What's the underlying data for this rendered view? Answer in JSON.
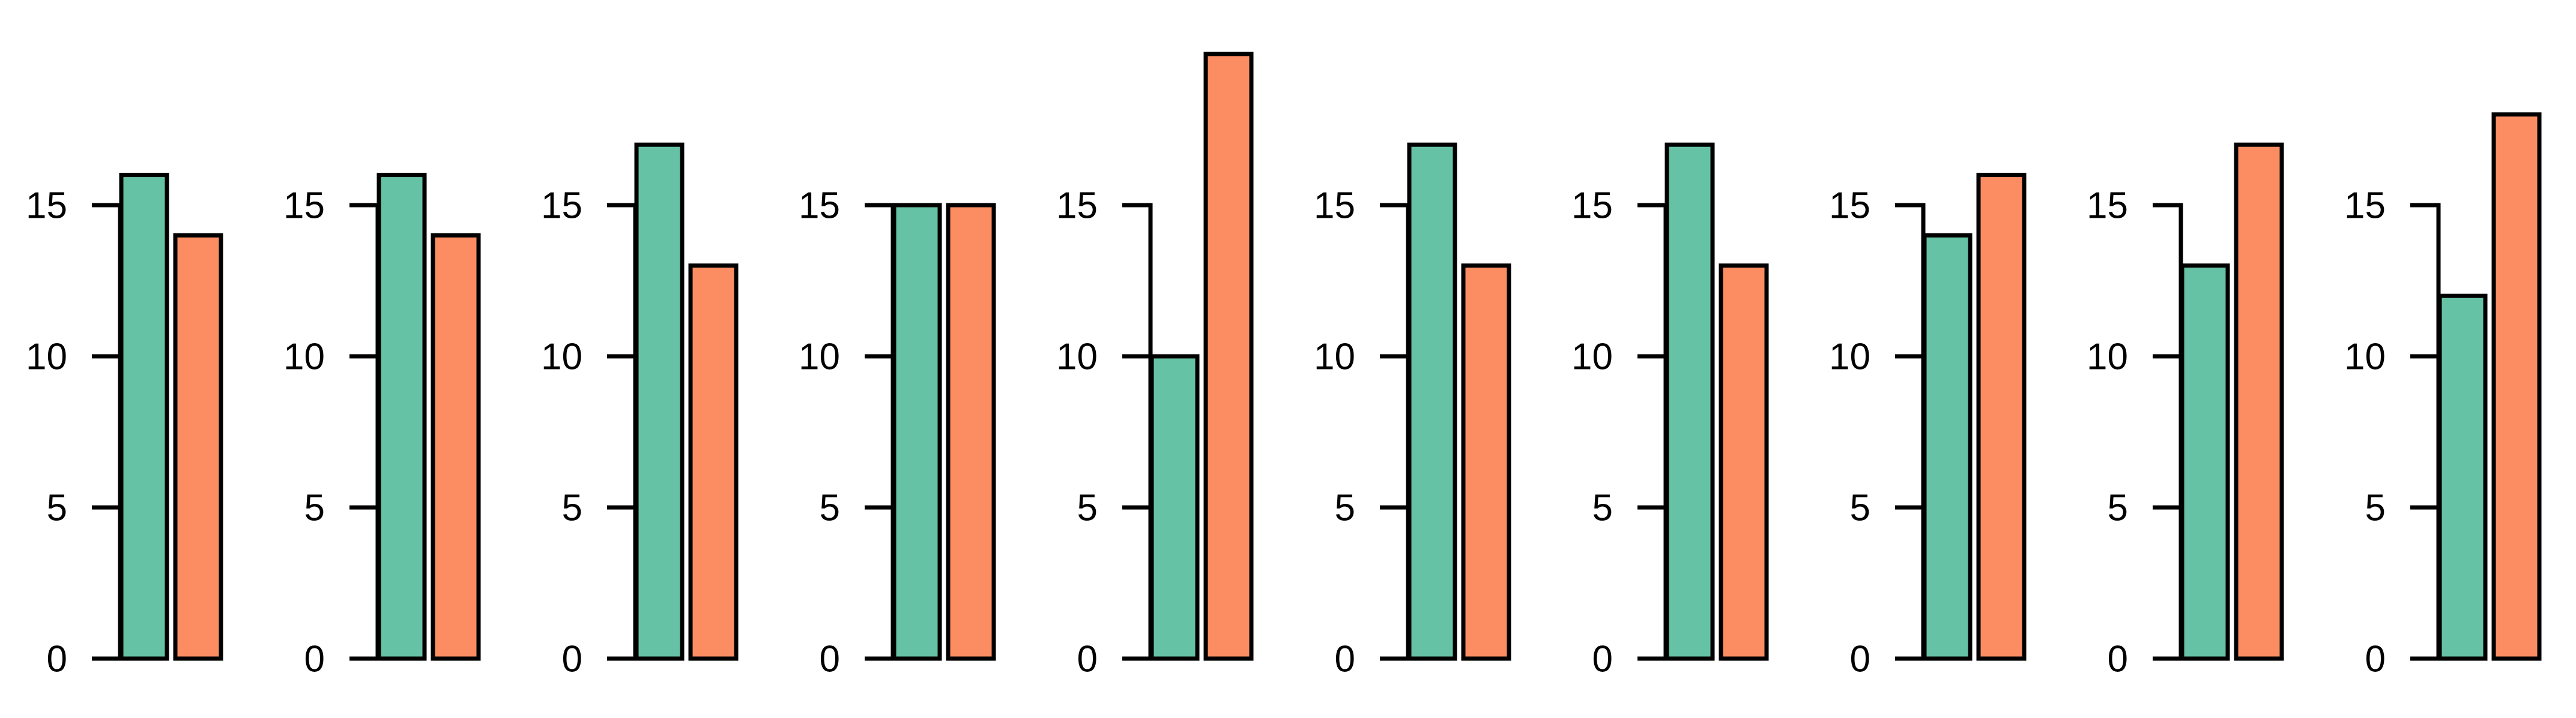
{
  "colors": {
    "series1_fill": "#66C2A5",
    "series2_fill": "#FC8D62",
    "bar_border": "#000000",
    "axis": "#000000",
    "background": "#FFFFFF"
  },
  "axis_config": {
    "ticks": [
      0,
      5,
      10,
      15
    ],
    "tick_labels": [
      "0",
      "5",
      "10",
      "15"
    ],
    "axis_min": 0,
    "axis_max": 15,
    "grid": "off",
    "legend": "none",
    "title": "",
    "xlabel": "",
    "ylabel": ""
  },
  "chart_data": [
    {
      "type": "bar",
      "values": [
        16,
        14
      ]
    },
    {
      "type": "bar",
      "values": [
        16,
        14
      ]
    },
    {
      "type": "bar",
      "values": [
        17,
        13
      ]
    },
    {
      "type": "bar",
      "values": [
        15,
        15
      ]
    },
    {
      "type": "bar",
      "values": [
        10,
        20
      ]
    },
    {
      "type": "bar",
      "values": [
        17,
        13
      ]
    },
    {
      "type": "bar",
      "values": [
        17,
        13
      ]
    },
    {
      "type": "bar",
      "values": [
        14,
        16
      ]
    },
    {
      "type": "bar",
      "values": [
        13,
        17
      ]
    },
    {
      "type": "bar",
      "values": [
        12,
        18
      ]
    }
  ]
}
